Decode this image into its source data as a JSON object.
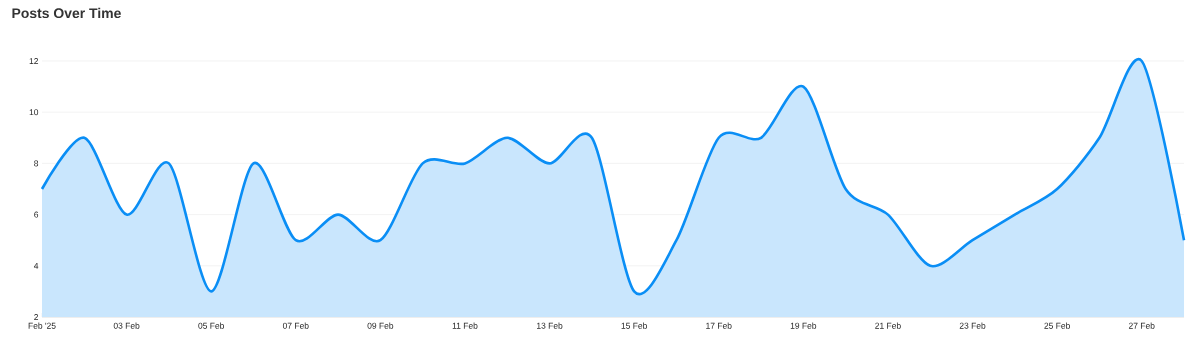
{
  "chart_data": {
    "type": "area",
    "title": "Posts Over Time",
    "x": [
      "2025-02-01",
      "2025-02-02",
      "2025-02-03",
      "2025-02-04",
      "2025-02-05",
      "2025-02-06",
      "2025-02-07",
      "2025-02-08",
      "2025-02-09",
      "2025-02-10",
      "2025-02-11",
      "2025-02-12",
      "2025-02-13",
      "2025-02-14",
      "2025-02-15",
      "2025-02-16",
      "2025-02-17",
      "2025-02-18",
      "2025-02-19",
      "2025-02-20",
      "2025-02-21",
      "2025-02-22",
      "2025-02-23",
      "2025-02-24",
      "2025-02-25",
      "2025-02-26",
      "2025-02-27",
      "2025-02-28"
    ],
    "series": [
      {
        "color": "#0a8ef5",
        "values": [
          7,
          9,
          6,
          8,
          3,
          8,
          5,
          6,
          5,
          8,
          8,
          9,
          8,
          9,
          3,
          5,
          9,
          9,
          11,
          7,
          6,
          4,
          5,
          6,
          7,
          9,
          12,
          5
        ]
      }
    ],
    "xlim": [
      "2025-02-01",
      "2025-02-28"
    ],
    "xticks": [
      {
        "value": "2025-02-01",
        "label": "Feb '25"
      },
      {
        "value": "2025-02-03",
        "label": "03 Feb"
      },
      {
        "value": "2025-02-05",
        "label": "05 Feb"
      },
      {
        "value": "2025-02-07",
        "label": "07 Feb"
      },
      {
        "value": "2025-02-09",
        "label": "09 Feb"
      },
      {
        "value": "2025-02-11",
        "label": "11 Feb"
      },
      {
        "value": "2025-02-13",
        "label": "13 Feb"
      },
      {
        "value": "2025-02-15",
        "label": "15 Feb"
      },
      {
        "value": "2025-02-17",
        "label": "17 Feb"
      },
      {
        "value": "2025-02-19",
        "label": "19 Feb"
      },
      {
        "value": "2025-02-21",
        "label": "21 Feb"
      },
      {
        "value": "2025-02-23",
        "label": "23 Feb"
      },
      {
        "value": "2025-02-25",
        "label": "25 Feb"
      },
      {
        "value": "2025-02-27",
        "label": "27 Feb"
      }
    ],
    "ylim": [
      2,
      12
    ],
    "yticks": [
      2,
      4,
      6,
      8,
      10,
      12
    ],
    "grid": "y",
    "marker": "none",
    "line_style": "solid"
  }
}
